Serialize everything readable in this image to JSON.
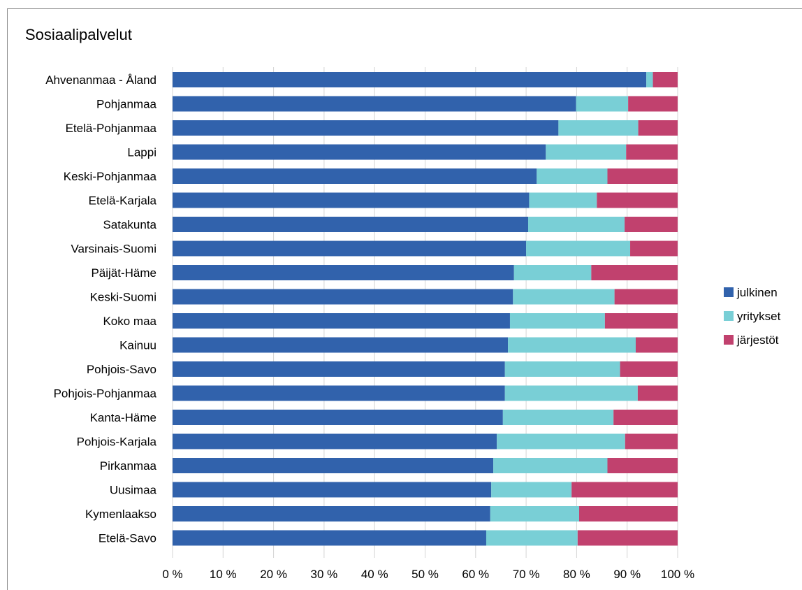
{
  "chart_data": {
    "type": "bar",
    "orientation": "horizontal",
    "stacked": true,
    "title": "Sosiaalipalvelut",
    "xlabel": "",
    "ylabel": "",
    "xlim": [
      0,
      100
    ],
    "x_ticks": [
      "0 %",
      "10 %",
      "20 %",
      "30 %",
      "40 %",
      "50 %",
      "60 %",
      "70 %",
      "80 %",
      "90 %",
      "100 %"
    ],
    "grid": "vertical",
    "legend_position": "right",
    "categories": [
      "Ahvenanmaa - Åland",
      "Pohjanmaa",
      "Etelä-Pohjanmaa",
      "Lappi",
      "Keski-Pohjanmaa",
      "Etelä-Karjala",
      "Satakunta",
      "Varsinais-Suomi",
      "Päijät-Häme",
      "Keski-Suomi",
      "Koko maa",
      "Kainuu",
      "Pohjois-Savo",
      "Pohjois-Pohjanmaa",
      "Kanta-Häme",
      "Pohjois-Karjala",
      "Pirkanmaa",
      "Uusimaa",
      "Kymenlaakso",
      "Etelä-Savo"
    ],
    "series": [
      {
        "name": "julkinen",
        "color": "#3162ac",
        "values": [
          93.8,
          79.9,
          76.4,
          73.9,
          72.1,
          70.6,
          70.4,
          70.0,
          67.6,
          67.4,
          66.8,
          66.4,
          65.8,
          65.8,
          65.4,
          64.2,
          63.5,
          63.1,
          62.9,
          62.1
        ]
      },
      {
        "name": "yritykset",
        "color": "#79cfd6",
        "values": [
          1.3,
          10.3,
          15.8,
          15.9,
          14.0,
          13.4,
          19.1,
          20.6,
          15.3,
          20.1,
          18.8,
          25.3,
          22.8,
          26.3,
          21.9,
          25.4,
          22.6,
          15.9,
          17.6,
          18.1
        ]
      },
      {
        "name": "järjestöt",
        "color": "#c1416e",
        "values": [
          4.9,
          9.8,
          7.8,
          10.2,
          13.9,
          16.0,
          10.5,
          9.4,
          17.1,
          12.5,
          14.4,
          8.3,
          11.4,
          7.9,
          12.7,
          10.4,
          13.9,
          21.0,
          19.5,
          19.8
        ]
      }
    ]
  }
}
